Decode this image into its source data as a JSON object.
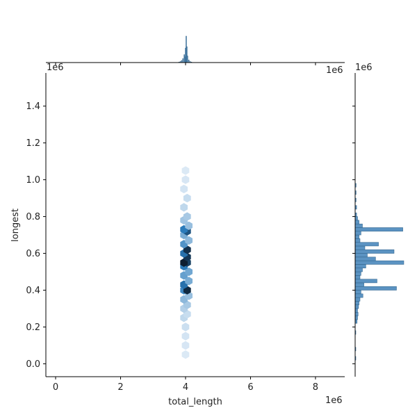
{
  "chart_data": {
    "type": "hexbin-jointplot",
    "xlabel": "total_length",
    "ylabel": "longest",
    "x_offset_label": "1e6",
    "y_offset_label": "1e6",
    "top_margin_offset_label": "1e6",
    "right_margin_offset_label": "1e6",
    "xlim": [
      -0.3,
      8.9
    ],
    "ylim": [
      -0.07,
      1.58
    ],
    "x_ticks": [
      "0",
      "2",
      "4",
      "6",
      "8"
    ],
    "x_tick_values": [
      0,
      2,
      4,
      6,
      8
    ],
    "y_ticks": [
      "0.0",
      "0.2",
      "0.4",
      "0.6",
      "0.8",
      "1.0",
      "1.2",
      "1.4"
    ],
    "y_tick_values": [
      0.0,
      0.2,
      0.4,
      0.6,
      0.8,
      1.0,
      1.2,
      1.4
    ],
    "hex_cells": [
      {
        "x": 4.0,
        "y": 0.05,
        "d": 0.05
      },
      {
        "x": 4.0,
        "y": 0.1,
        "d": 0.06
      },
      {
        "x": 4.0,
        "y": 0.15,
        "d": 0.07
      },
      {
        "x": 4.0,
        "y": 0.2,
        "d": 0.09
      },
      {
        "x": 3.95,
        "y": 0.25,
        "d": 0.12
      },
      {
        "x": 4.05,
        "y": 0.27,
        "d": 0.1
      },
      {
        "x": 3.95,
        "y": 0.3,
        "d": 0.15
      },
      {
        "x": 4.05,
        "y": 0.32,
        "d": 0.18
      },
      {
        "x": 3.95,
        "y": 0.35,
        "d": 0.25
      },
      {
        "x": 4.1,
        "y": 0.37,
        "d": 0.22
      },
      {
        "x": 3.95,
        "y": 0.4,
        "d": 0.45
      },
      {
        "x": 4.05,
        "y": 0.4,
        "d": 0.92
      },
      {
        "x": 3.95,
        "y": 0.43,
        "d": 0.55
      },
      {
        "x": 4.1,
        "y": 0.45,
        "d": 0.3
      },
      {
        "x": 3.95,
        "y": 0.48,
        "d": 0.35
      },
      {
        "x": 4.1,
        "y": 0.5,
        "d": 0.32
      },
      {
        "x": 3.95,
        "y": 0.53,
        "d": 0.5
      },
      {
        "x": 4.05,
        "y": 0.55,
        "d": 0.8
      },
      {
        "x": 3.95,
        "y": 0.55,
        "d": 0.98
      },
      {
        "x": 4.05,
        "y": 0.58,
        "d": 0.85
      },
      {
        "x": 3.95,
        "y": 0.6,
        "d": 0.55
      },
      {
        "x": 4.05,
        "y": 0.62,
        "d": 0.88
      },
      {
        "x": 3.95,
        "y": 0.65,
        "d": 0.4
      },
      {
        "x": 4.1,
        "y": 0.67,
        "d": 0.25
      },
      {
        "x": 3.95,
        "y": 0.7,
        "d": 0.3
      },
      {
        "x": 4.05,
        "y": 0.72,
        "d": 0.7
      },
      {
        "x": 3.95,
        "y": 0.73,
        "d": 0.5
      },
      {
        "x": 4.1,
        "y": 0.75,
        "d": 0.22
      },
      {
        "x": 3.95,
        "y": 0.78,
        "d": 0.2
      },
      {
        "x": 4.05,
        "y": 0.8,
        "d": 0.18
      },
      {
        "x": 3.95,
        "y": 0.85,
        "d": 0.12
      },
      {
        "x": 4.05,
        "y": 0.9,
        "d": 0.1
      },
      {
        "x": 3.95,
        "y": 0.95,
        "d": 0.07
      },
      {
        "x": 4.0,
        "y": 1.0,
        "d": 0.06
      },
      {
        "x": 4.0,
        "y": 1.05,
        "d": 0.05
      }
    ],
    "x_marginal_bins": [
      {
        "x": 3.8,
        "h": 0.02
      },
      {
        "x": 3.84,
        "h": 0.04
      },
      {
        "x": 3.88,
        "h": 0.08
      },
      {
        "x": 3.92,
        "h": 0.15
      },
      {
        "x": 3.96,
        "h": 0.3
      },
      {
        "x": 3.98,
        "h": 0.22
      },
      {
        "x": 4.0,
        "h": 0.55
      },
      {
        "x": 4.02,
        "h": 1.0
      },
      {
        "x": 4.04,
        "h": 0.6
      },
      {
        "x": 4.06,
        "h": 0.25
      },
      {
        "x": 4.1,
        "h": 0.1
      },
      {
        "x": 4.14,
        "h": 0.04
      },
      {
        "x": 4.18,
        "h": 0.02
      }
    ],
    "y_marginal_bins": [
      {
        "y": 0.03,
        "w": 0.01
      },
      {
        "y": 0.08,
        "w": 0.01
      },
      {
        "y": 0.17,
        "w": 0.01
      },
      {
        "y": 0.23,
        "w": 0.04
      },
      {
        "y": 0.25,
        "w": 0.05
      },
      {
        "y": 0.27,
        "w": 0.06
      },
      {
        "y": 0.29,
        "w": 0.05
      },
      {
        "y": 0.31,
        "w": 0.07
      },
      {
        "y": 0.33,
        "w": 0.08
      },
      {
        "y": 0.35,
        "w": 0.1
      },
      {
        "y": 0.37,
        "w": 0.16
      },
      {
        "y": 0.39,
        "w": 0.12
      },
      {
        "y": 0.41,
        "w": 0.85
      },
      {
        "y": 0.43,
        "w": 0.18
      },
      {
        "y": 0.45,
        "w": 0.45
      },
      {
        "y": 0.47,
        "w": 0.1
      },
      {
        "y": 0.49,
        "w": 0.12
      },
      {
        "y": 0.51,
        "w": 0.15
      },
      {
        "y": 0.53,
        "w": 0.22
      },
      {
        "y": 0.55,
        "w": 1.0
      },
      {
        "y": 0.57,
        "w": 0.42
      },
      {
        "y": 0.59,
        "w": 0.25
      },
      {
        "y": 0.61,
        "w": 0.8
      },
      {
        "y": 0.63,
        "w": 0.2
      },
      {
        "y": 0.65,
        "w": 0.48
      },
      {
        "y": 0.67,
        "w": 0.1
      },
      {
        "y": 0.69,
        "w": 0.08
      },
      {
        "y": 0.71,
        "w": 0.12
      },
      {
        "y": 0.73,
        "w": 0.98
      },
      {
        "y": 0.75,
        "w": 0.15
      },
      {
        "y": 0.77,
        "w": 0.08
      },
      {
        "y": 0.79,
        "w": 0.05
      },
      {
        "y": 0.81,
        "w": 0.03
      },
      {
        "y": 0.85,
        "w": 0.03
      },
      {
        "y": 0.89,
        "w": 0.02
      },
      {
        "y": 0.93,
        "w": 0.02
      },
      {
        "y": 0.97,
        "w": 0.02
      }
    ],
    "colors": {
      "hist_fill": "#5b93c2",
      "hist_edge": "#2d5f86",
      "hex_low": "#eef5fc",
      "hex_mid": "#2b7bba",
      "hex_high": "#0b1a2b"
    }
  }
}
